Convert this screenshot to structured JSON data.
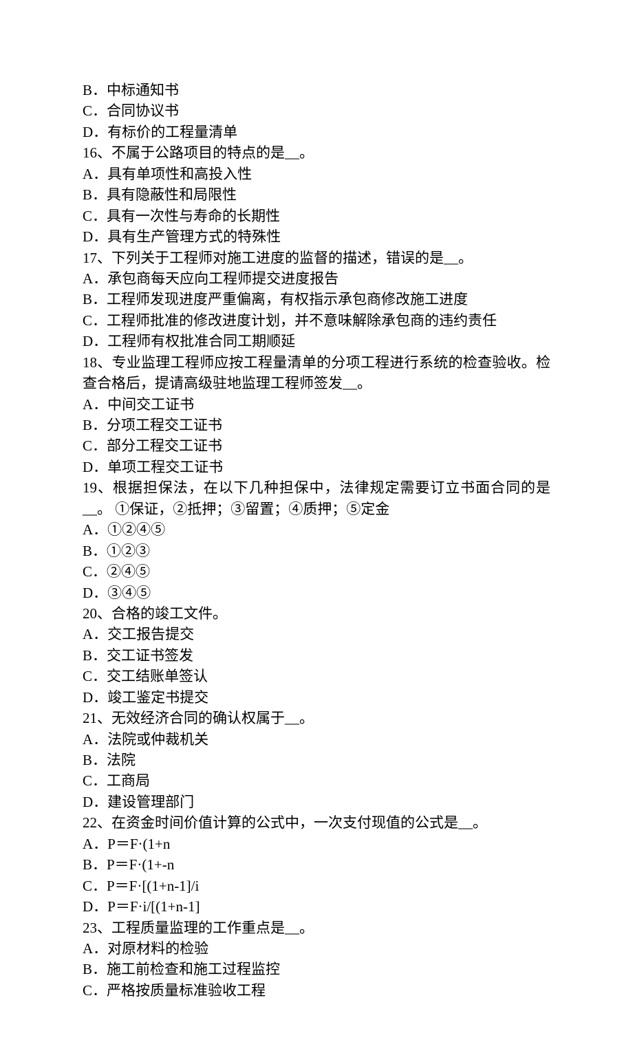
{
  "lines": [
    "B．中标通知书",
    "C．合同协议书",
    "D．有标价的工程量清单",
    "16、不属于公路项目的特点的是__。",
    "A．具有单项性和高投入性",
    "B．具有隐蔽性和局限性",
    "C．具有一次性与寿命的长期性",
    "D．具有生产管理方式的特殊性",
    "17、下列关于工程师对施工进度的监督的描述，错误的是__。",
    "A．承包商每天应向工程师提交进度报告",
    "B．工程师发现进度严重偏离，有权指示承包商修改施工进度",
    "C．工程师批准的修改进度计划，并不意味解除承包商的违约责任",
    "D．工程师有权批准合同工期顺延",
    "18、专业监理工程师应按工程量清单的分项工程进行系统的检查验收。检查合格后，提请高级驻地监理工程师签发__。",
    "A．中间交工证书",
    "B．分项工程交工证书",
    "C．部分工程交工证书",
    "D．单项工程交工证书",
    "19、根据担保法，在以下几种担保中，法律规定需要订立书面合同的是__。 ①保证，②抵押；③留置；④质押；⑤定金",
    "A．①②④⑤",
    "B．①②③",
    "C．②④⑤",
    "D．③④⑤",
    "20、合格的竣工文件。",
    "A．交工报告提交",
    "B．交工证书签发",
    "C．交工结账单签认",
    "D．竣工鉴定书提交",
    "21、无效经济合同的确认权属于__。",
    "A．法院或仲裁机关",
    "B．法院",
    "C．工商局",
    "D．建设管理部门",
    "22、在资金时间价值计算的公式中，一次支付现值的公式是__。",
    "A．P＝F·(1+n",
    "B．P＝F·(1+-n",
    "C．P＝F·[(1+n-1]/i",
    "D．P＝F·i/[(1+n-1]",
    "23、工程质量监理的工作重点是__。",
    "A．对原材料的检验",
    "B．施工前检查和施工过程监控",
    "C．严格按质量标准验收工程"
  ]
}
